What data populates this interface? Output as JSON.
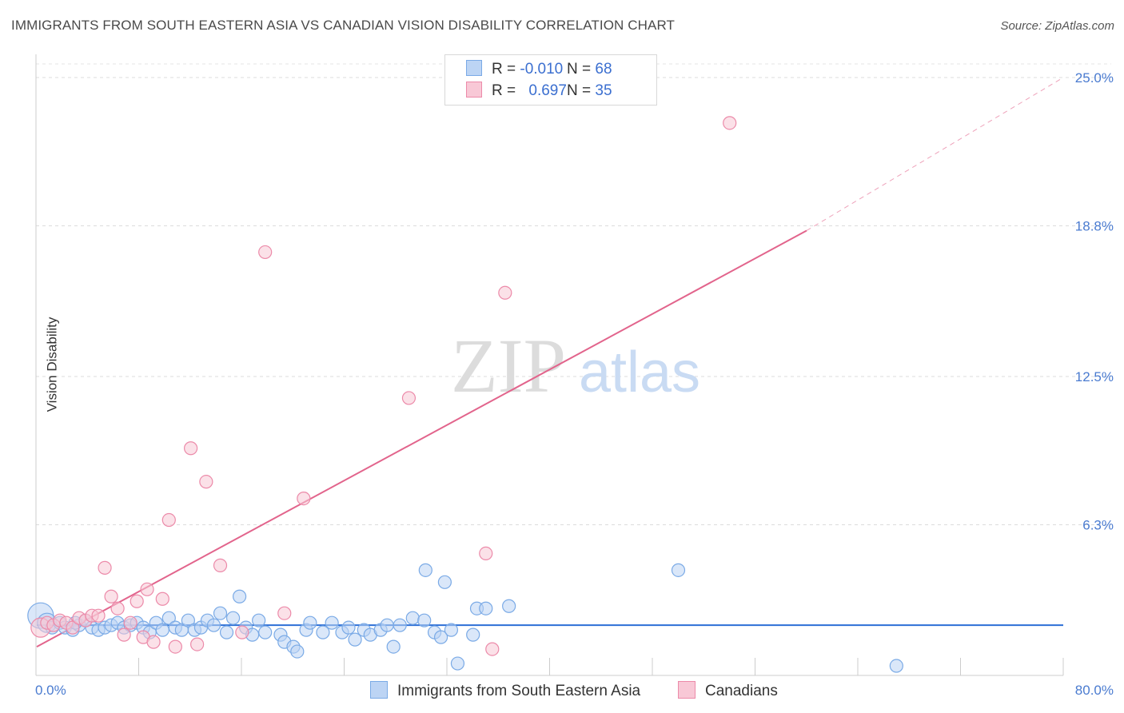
{
  "title": "IMMIGRANTS FROM SOUTH EASTERN ASIA VS CANADIAN VISION DISABILITY CORRELATION CHART",
  "source": "Source: ZipAtlas.com",
  "watermark": {
    "zip": "ZIP",
    "atlas": "atlas"
  },
  "legend": {
    "blue": {
      "r_label": "R = ",
      "r_value": "-0.010",
      "n_label": "N = ",
      "n_value": "68"
    },
    "pink": {
      "r_label": "R = ",
      "r_value": "0.697",
      "n_label": "N = ",
      "n_value": "35"
    }
  },
  "colors": {
    "blue": "#7aaae6",
    "blue_fill": "#bcd4f4",
    "blue_line": "#2d6fd6",
    "pink": "#ec8aa9",
    "pink_fill": "#f8c8d6",
    "pink_line": "#e2648c",
    "tick_text": "#4a7bd0"
  },
  "chart_data": {
    "type": "scatter",
    "title": "IMMIGRANTS FROM SOUTH EASTERN ASIA VS CANADIAN VISION DISABILITY CORRELATION CHART",
    "xlabel": "",
    "ylabel": "Vision Disability",
    "xlim": [
      0,
      80
    ],
    "ylim": [
      0,
      25
    ],
    "x_tick_labels": [
      "0.0%",
      "80.0%"
    ],
    "y_ticks": [
      6.3,
      12.5,
      18.8,
      25.0
    ],
    "y_tick_labels": [
      "6.3%",
      "12.5%",
      "18.8%",
      "25.0%"
    ],
    "grid": true,
    "series": [
      {
        "name": "Immigrants from South Eastern Asia",
        "color": "#7aaae6",
        "r": -0.01,
        "n": 68,
        "trend": {
          "x": [
            0,
            80
          ],
          "y": [
            2.1,
            2.1
          ]
        },
        "points": [
          {
            "x": 0.3,
            "y": 2.5,
            "s": 2
          },
          {
            "x": 0.8,
            "y": 2.2,
            "s": 1.5
          },
          {
            "x": 1.2,
            "y": 2.0
          },
          {
            "x": 1.8,
            "y": 2.2
          },
          {
            "x": 2.2,
            "y": 2.0
          },
          {
            "x": 2.8,
            "y": 1.9
          },
          {
            "x": 3.3,
            "y": 2.1
          },
          {
            "x": 3.8,
            "y": 2.3
          },
          {
            "x": 4.3,
            "y": 2.0
          },
          {
            "x": 4.8,
            "y": 1.9
          },
          {
            "x": 5.3,
            "y": 2.0
          },
          {
            "x": 5.8,
            "y": 2.1
          },
          {
            "x": 6.3,
            "y": 2.2
          },
          {
            "x": 6.8,
            "y": 2.0
          },
          {
            "x": 7.3,
            "y": 2.1
          },
          {
            "x": 7.8,
            "y": 2.2
          },
          {
            "x": 8.3,
            "y": 2.0
          },
          {
            "x": 8.8,
            "y": 1.8
          },
          {
            "x": 9.3,
            "y": 2.2
          },
          {
            "x": 9.8,
            "y": 1.9
          },
          {
            "x": 10.3,
            "y": 2.4
          },
          {
            "x": 10.8,
            "y": 2.0
          },
          {
            "x": 11.3,
            "y": 1.9
          },
          {
            "x": 11.8,
            "y": 2.3
          },
          {
            "x": 12.3,
            "y": 1.9
          },
          {
            "x": 12.8,
            "y": 2.0
          },
          {
            "x": 13.3,
            "y": 2.3
          },
          {
            "x": 13.8,
            "y": 2.1
          },
          {
            "x": 14.3,
            "y": 2.6
          },
          {
            "x": 14.8,
            "y": 1.8
          },
          {
            "x": 15.3,
            "y": 2.4
          },
          {
            "x": 15.8,
            "y": 3.3
          },
          {
            "x": 16.3,
            "y": 2.0
          },
          {
            "x": 16.8,
            "y": 1.7
          },
          {
            "x": 17.3,
            "y": 2.3
          },
          {
            "x": 17.8,
            "y": 1.8
          },
          {
            "x": 19.0,
            "y": 1.7
          },
          {
            "x": 19.3,
            "y": 1.4
          },
          {
            "x": 20.0,
            "y": 1.2
          },
          {
            "x": 20.3,
            "y": 1.0
          },
          {
            "x": 21.0,
            "y": 1.9
          },
          {
            "x": 21.3,
            "y": 2.2
          },
          {
            "x": 22.3,
            "y": 1.8
          },
          {
            "x": 23.0,
            "y": 2.2
          },
          {
            "x": 23.8,
            "y": 1.8
          },
          {
            "x": 24.3,
            "y": 2.0
          },
          {
            "x": 24.8,
            "y": 1.5
          },
          {
            "x": 25.5,
            "y": 1.9
          },
          {
            "x": 26.0,
            "y": 1.7
          },
          {
            "x": 26.8,
            "y": 1.9
          },
          {
            "x": 27.3,
            "y": 2.1
          },
          {
            "x": 27.8,
            "y": 1.2
          },
          {
            "x": 28.3,
            "y": 2.1
          },
          {
            "x": 29.3,
            "y": 2.4
          },
          {
            "x": 30.2,
            "y": 2.3
          },
          {
            "x": 30.3,
            "y": 4.4
          },
          {
            "x": 31.0,
            "y": 1.8
          },
          {
            "x": 31.5,
            "y": 1.6
          },
          {
            "x": 31.8,
            "y": 3.9
          },
          {
            "x": 32.3,
            "y": 1.9
          },
          {
            "x": 32.8,
            "y": 0.5
          },
          {
            "x": 34.0,
            "y": 1.7
          },
          {
            "x": 34.3,
            "y": 2.8
          },
          {
            "x": 35.0,
            "y": 2.8
          },
          {
            "x": 36.8,
            "y": 2.9
          },
          {
            "x": 50.0,
            "y": 4.4
          },
          {
            "x": 67.0,
            "y": 0.4
          },
          {
            "x": 3.0,
            "y": 2.2
          }
        ]
      },
      {
        "name": "Canadians",
        "color": "#ec8aa9",
        "r": 0.697,
        "n": 35,
        "trend": {
          "x": [
            0,
            60
          ],
          "y": [
            1.2,
            18.6
          ]
        },
        "trend_dashed": {
          "x": [
            60,
            80
          ],
          "y": [
            18.6,
            25.0
          ]
        },
        "points": [
          {
            "x": 0.3,
            "y": 2.0,
            "s": 1.5
          },
          {
            "x": 0.8,
            "y": 2.2
          },
          {
            "x": 1.3,
            "y": 2.1
          },
          {
            "x": 1.8,
            "y": 2.3
          },
          {
            "x": 2.3,
            "y": 2.2
          },
          {
            "x": 2.8,
            "y": 2.0
          },
          {
            "x": 3.3,
            "y": 2.4
          },
          {
            "x": 3.8,
            "y": 2.3
          },
          {
            "x": 4.3,
            "y": 2.5
          },
          {
            "x": 4.8,
            "y": 2.5
          },
          {
            "x": 5.3,
            "y": 4.5
          },
          {
            "x": 5.8,
            "y": 3.3
          },
          {
            "x": 6.3,
            "y": 2.8
          },
          {
            "x": 6.8,
            "y": 1.7
          },
          {
            "x": 7.3,
            "y": 2.2
          },
          {
            "x": 7.8,
            "y": 3.1
          },
          {
            "x": 8.3,
            "y": 1.6
          },
          {
            "x": 8.6,
            "y": 3.6
          },
          {
            "x": 9.1,
            "y": 1.4
          },
          {
            "x": 9.8,
            "y": 3.2
          },
          {
            "x": 10.3,
            "y": 6.5
          },
          {
            "x": 10.8,
            "y": 1.2
          },
          {
            "x": 12.0,
            "y": 9.5
          },
          {
            "x": 12.5,
            "y": 1.3
          },
          {
            "x": 13.2,
            "y": 8.1
          },
          {
            "x": 14.3,
            "y": 4.6
          },
          {
            "x": 16.0,
            "y": 1.8
          },
          {
            "x": 17.8,
            "y": 17.7
          },
          {
            "x": 19.3,
            "y": 2.6
          },
          {
            "x": 20.8,
            "y": 7.4
          },
          {
            "x": 29.0,
            "y": 11.6
          },
          {
            "x": 35.0,
            "y": 5.1
          },
          {
            "x": 35.5,
            "y": 1.1
          },
          {
            "x": 36.5,
            "y": 16.0
          },
          {
            "x": 54.0,
            "y": 23.1
          }
        ]
      }
    ]
  },
  "bottom_legend": {
    "blue_label": "Immigrants from South Eastern Asia",
    "pink_label": "Canadians"
  }
}
